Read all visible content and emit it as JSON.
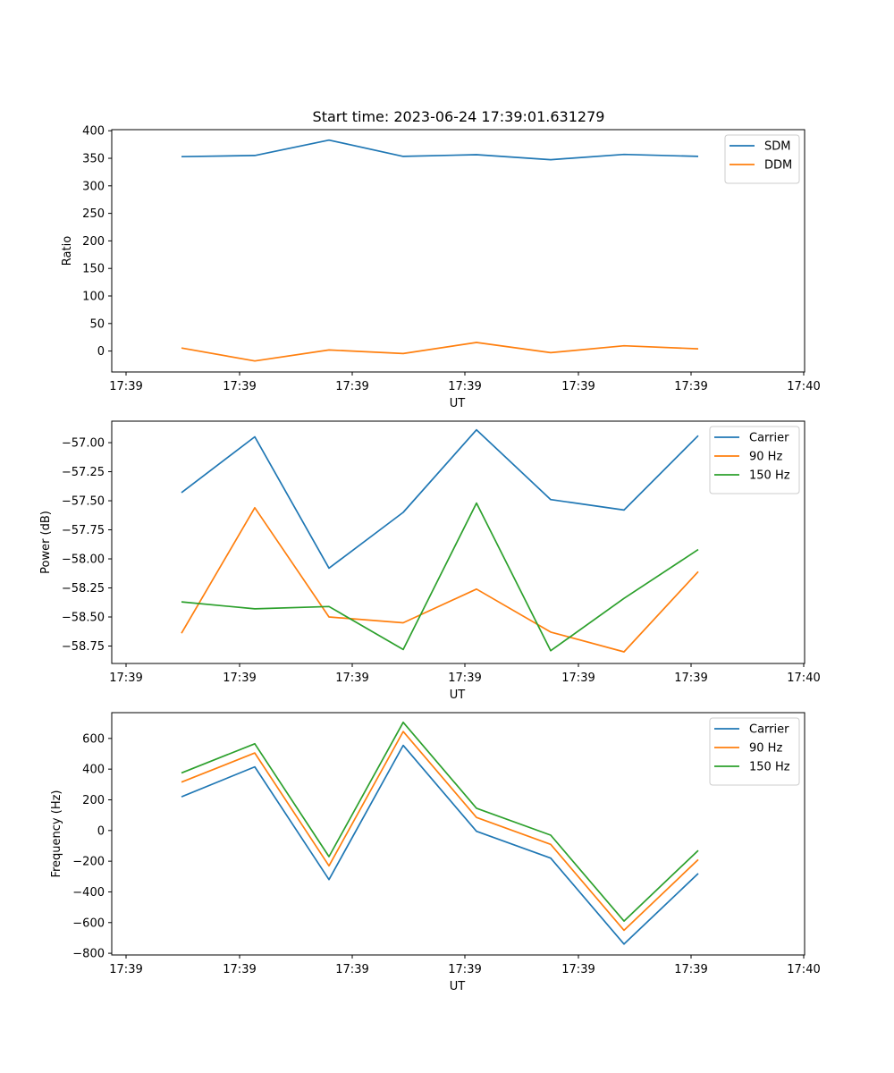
{
  "figure_title": "Start time: 2023-06-24 17:39:01.631279",
  "colors": {
    "blue": "#1f77b4",
    "orange": "#ff7f0e",
    "green": "#2ca02c"
  },
  "chart_data": [
    {
      "type": "line",
      "title": "Start time: 2023-06-24 17:39:01.631279",
      "xlabel": "UT",
      "ylabel": "Ratio",
      "x_tick_labels": [
        "17:39",
        "17:39",
        "17:39",
        "17:39",
        "17:39",
        "17:39",
        "17:40"
      ],
      "y_ticks": [
        0,
        50,
        100,
        150,
        200,
        250,
        300,
        350,
        400
      ],
      "y_tick_labels": [
        "0",
        "50",
        "100",
        "150",
        "200",
        "250",
        "300",
        "350",
        "400"
      ],
      "ylim": [
        -38,
        402
      ],
      "legend_position": "upper right",
      "series": [
        {
          "name": "SDM",
          "color": "#1f77b4",
          "values": [
            353,
            355,
            383,
            353.5,
            356.5,
            347.5,
            357,
            353.5
          ]
        },
        {
          "name": "DDM",
          "color": "#ff7f0e",
          "values": [
            5.5,
            -18,
            2,
            -4.5,
            15.5,
            -3,
            9.5,
            4
          ]
        }
      ]
    },
    {
      "type": "line",
      "xlabel": "UT",
      "ylabel": "Power (dB)",
      "x_tick_labels": [
        "17:39",
        "17:39",
        "17:39",
        "17:39",
        "17:39",
        "17:39",
        "17:40"
      ],
      "y_ticks": [
        -57.0,
        -57.25,
        -57.5,
        -57.75,
        -58.0,
        -58.25,
        -58.5,
        -58.75
      ],
      "y_tick_labels": [
        "−57.00",
        "−57.25",
        "−57.50",
        "−57.75",
        "−58.00",
        "−58.25",
        "−58.50",
        "−58.75"
      ],
      "ylim": [
        -58.9,
        -56.815
      ],
      "legend_position": "upper right",
      "series": [
        {
          "name": "Carrier",
          "color": "#1f77b4",
          "values": [
            -57.43,
            -56.95,
            -58.08,
            -57.6,
            -56.89,
            -57.49,
            -57.58,
            -56.94
          ]
        },
        {
          "name": "90 Hz",
          "color": "#ff7f0e",
          "values": [
            -58.64,
            -57.56,
            -58.5,
            -58.55,
            -58.26,
            -58.63,
            -58.8,
            -58.11
          ]
        },
        {
          "name": "150 Hz",
          "color": "#2ca02c",
          "values": [
            -58.37,
            -58.43,
            -58.41,
            -58.78,
            -57.52,
            -58.79,
            -58.34,
            -57.92
          ]
        }
      ]
    },
    {
      "type": "line",
      "xlabel": "UT",
      "ylabel": "Frequency (Hz)",
      "x_tick_labels": [
        "17:39",
        "17:39",
        "17:39",
        "17:39",
        "17:39",
        "17:39",
        "17:40"
      ],
      "y_ticks": [
        600,
        400,
        200,
        0,
        -200,
        -400,
        -600,
        -800
      ],
      "y_tick_labels": [
        "600",
        "400",
        "200",
        "0",
        "−200",
        "−400",
        "−600",
        "−800"
      ],
      "ylim": [
        -811,
        768
      ],
      "legend_position": "upper right",
      "series": [
        {
          "name": "Carrier",
          "color": "#1f77b4",
          "values": [
            220,
            415,
            -320,
            555,
            -5,
            -180,
            -740,
            -280
          ]
        },
        {
          "name": "90 Hz",
          "color": "#ff7f0e",
          "values": [
            315,
            505,
            -230,
            645,
            85,
            -90,
            -650,
            -190
          ]
        },
        {
          "name": "150 Hz",
          "color": "#2ca02c",
          "values": [
            375,
            565,
            -170,
            705,
            145,
            -30,
            -590,
            -130
          ]
        }
      ]
    }
  ]
}
